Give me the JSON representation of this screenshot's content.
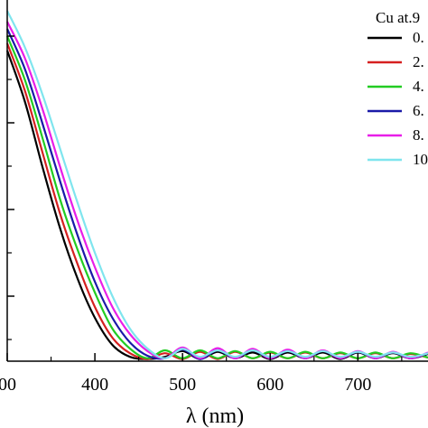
{
  "chart_data": {
    "type": "line",
    "xlabel": "λ (nm)",
    "ylabel": "",
    "xlim": [
      300,
      780
    ],
    "ylim": [
      0,
      1.0
    ],
    "x_ticks": [
      "00",
      "400",
      "500",
      "600",
      "700"
    ],
    "x_tick_values": [
      300,
      400,
      500,
      600,
      700
    ],
    "y_tick_values": [
      0.18,
      0.42,
      0.66,
      0.9
    ],
    "legend": {
      "title": "Cu at.9",
      "placement": "top-right"
    },
    "series": [
      {
        "name": "0.",
        "color": "#000000",
        "points": [
          [
            300,
            0.86
          ],
          [
            320,
            0.72
          ],
          [
            340,
            0.54
          ],
          [
            360,
            0.37
          ],
          [
            380,
            0.23
          ],
          [
            400,
            0.12
          ],
          [
            420,
            0.045
          ],
          [
            440,
            0.012
          ],
          [
            460,
            0.006
          ],
          [
            480,
            0.012
          ],
          [
            500,
            0.028
          ],
          [
            520,
            0.006
          ],
          [
            540,
            0.026
          ],
          [
            560,
            0.008
          ],
          [
            580,
            0.024
          ],
          [
            600,
            0.006
          ],
          [
            620,
            0.024
          ],
          [
            640,
            0.008
          ],
          [
            660,
            0.024
          ],
          [
            680,
            0.006
          ],
          [
            700,
            0.024
          ],
          [
            720,
            0.008
          ],
          [
            740,
            0.022
          ],
          [
            760,
            0.008
          ],
          [
            780,
            0.02
          ]
        ]
      },
      {
        "name": "2.",
        "color": "#d62020",
        "points": [
          [
            300,
            0.88
          ],
          [
            320,
            0.75
          ],
          [
            340,
            0.58
          ],
          [
            360,
            0.41
          ],
          [
            380,
            0.27
          ],
          [
            400,
            0.15
          ],
          [
            420,
            0.065
          ],
          [
            440,
            0.022
          ],
          [
            460,
            0.006
          ],
          [
            480,
            0.022
          ],
          [
            500,
            0.006
          ],
          [
            520,
            0.026
          ],
          [
            540,
            0.006
          ],
          [
            560,
            0.026
          ],
          [
            580,
            0.008
          ],
          [
            600,
            0.024
          ],
          [
            620,
            0.008
          ],
          [
            640,
            0.024
          ],
          [
            660,
            0.008
          ],
          [
            680,
            0.022
          ],
          [
            700,
            0.008
          ],
          [
            720,
            0.022
          ],
          [
            740,
            0.008
          ],
          [
            760,
            0.02
          ],
          [
            780,
            0.01
          ]
        ]
      },
      {
        "name": "4.",
        "color": "#22cc22",
        "points": [
          [
            300,
            0.9
          ],
          [
            320,
            0.78
          ],
          [
            340,
            0.62
          ],
          [
            360,
            0.45
          ],
          [
            380,
            0.31
          ],
          [
            400,
            0.19
          ],
          [
            420,
            0.09
          ],
          [
            440,
            0.035
          ],
          [
            460,
            0.008
          ],
          [
            480,
            0.03
          ],
          [
            500,
            0.008
          ],
          [
            520,
            0.03
          ],
          [
            540,
            0.008
          ],
          [
            560,
            0.028
          ],
          [
            580,
            0.008
          ],
          [
            600,
            0.026
          ],
          [
            620,
            0.008
          ],
          [
            640,
            0.026
          ],
          [
            660,
            0.008
          ],
          [
            680,
            0.024
          ],
          [
            700,
            0.008
          ],
          [
            720,
            0.024
          ],
          [
            740,
            0.008
          ],
          [
            760,
            0.022
          ],
          [
            780,
            0.01
          ]
        ]
      },
      {
        "name": "6.",
        "color": "#1a1aa8",
        "points": [
          [
            300,
            0.92
          ],
          [
            320,
            0.81
          ],
          [
            340,
            0.66
          ],
          [
            360,
            0.5
          ],
          [
            380,
            0.35
          ],
          [
            400,
            0.22
          ],
          [
            420,
            0.12
          ],
          [
            440,
            0.052
          ],
          [
            460,
            0.015
          ],
          [
            480,
            0.008
          ],
          [
            500,
            0.032
          ],
          [
            520,
            0.006
          ],
          [
            540,
            0.03
          ],
          [
            560,
            0.008
          ],
          [
            580,
            0.03
          ],
          [
            600,
            0.008
          ],
          [
            620,
            0.028
          ],
          [
            640,
            0.008
          ],
          [
            660,
            0.028
          ],
          [
            680,
            0.008
          ],
          [
            700,
            0.026
          ],
          [
            720,
            0.008
          ],
          [
            740,
            0.024
          ],
          [
            760,
            0.008
          ],
          [
            780,
            0.022
          ]
        ]
      },
      {
        "name": "8.",
        "color": "#e81ee8",
        "points": [
          [
            300,
            0.94
          ],
          [
            320,
            0.84
          ],
          [
            340,
            0.7
          ],
          [
            360,
            0.54
          ],
          [
            380,
            0.39
          ],
          [
            400,
            0.26
          ],
          [
            420,
            0.15
          ],
          [
            440,
            0.075
          ],
          [
            460,
            0.028
          ],
          [
            480,
            0.008
          ],
          [
            500,
            0.038
          ],
          [
            520,
            0.008
          ],
          [
            540,
            0.036
          ],
          [
            560,
            0.008
          ],
          [
            580,
            0.034
          ],
          [
            600,
            0.008
          ],
          [
            620,
            0.032
          ],
          [
            640,
            0.008
          ],
          [
            660,
            0.03
          ],
          [
            680,
            0.008
          ],
          [
            700,
            0.028
          ],
          [
            720,
            0.008
          ],
          [
            740,
            0.026
          ],
          [
            760,
            0.008
          ],
          [
            780,
            0.024
          ]
        ]
      },
      {
        "name": "10",
        "color": "#7fe5ee",
        "points": [
          [
            300,
            0.97
          ],
          [
            320,
            0.87
          ],
          [
            340,
            0.74
          ],
          [
            360,
            0.59
          ],
          [
            380,
            0.44
          ],
          [
            400,
            0.3
          ],
          [
            420,
            0.18
          ],
          [
            440,
            0.09
          ],
          [
            460,
            0.035
          ],
          [
            480,
            0.008
          ],
          [
            500,
            0.034
          ],
          [
            520,
            0.012
          ],
          [
            540,
            0.03
          ],
          [
            560,
            0.012
          ],
          [
            580,
            0.03
          ],
          [
            600,
            0.012
          ],
          [
            620,
            0.028
          ],
          [
            640,
            0.012
          ],
          [
            660,
            0.028
          ],
          [
            680,
            0.012
          ],
          [
            700,
            0.026
          ],
          [
            720,
            0.012
          ],
          [
            740,
            0.024
          ],
          [
            760,
            0.012
          ],
          [
            780,
            0.022
          ]
        ]
      }
    ]
  }
}
